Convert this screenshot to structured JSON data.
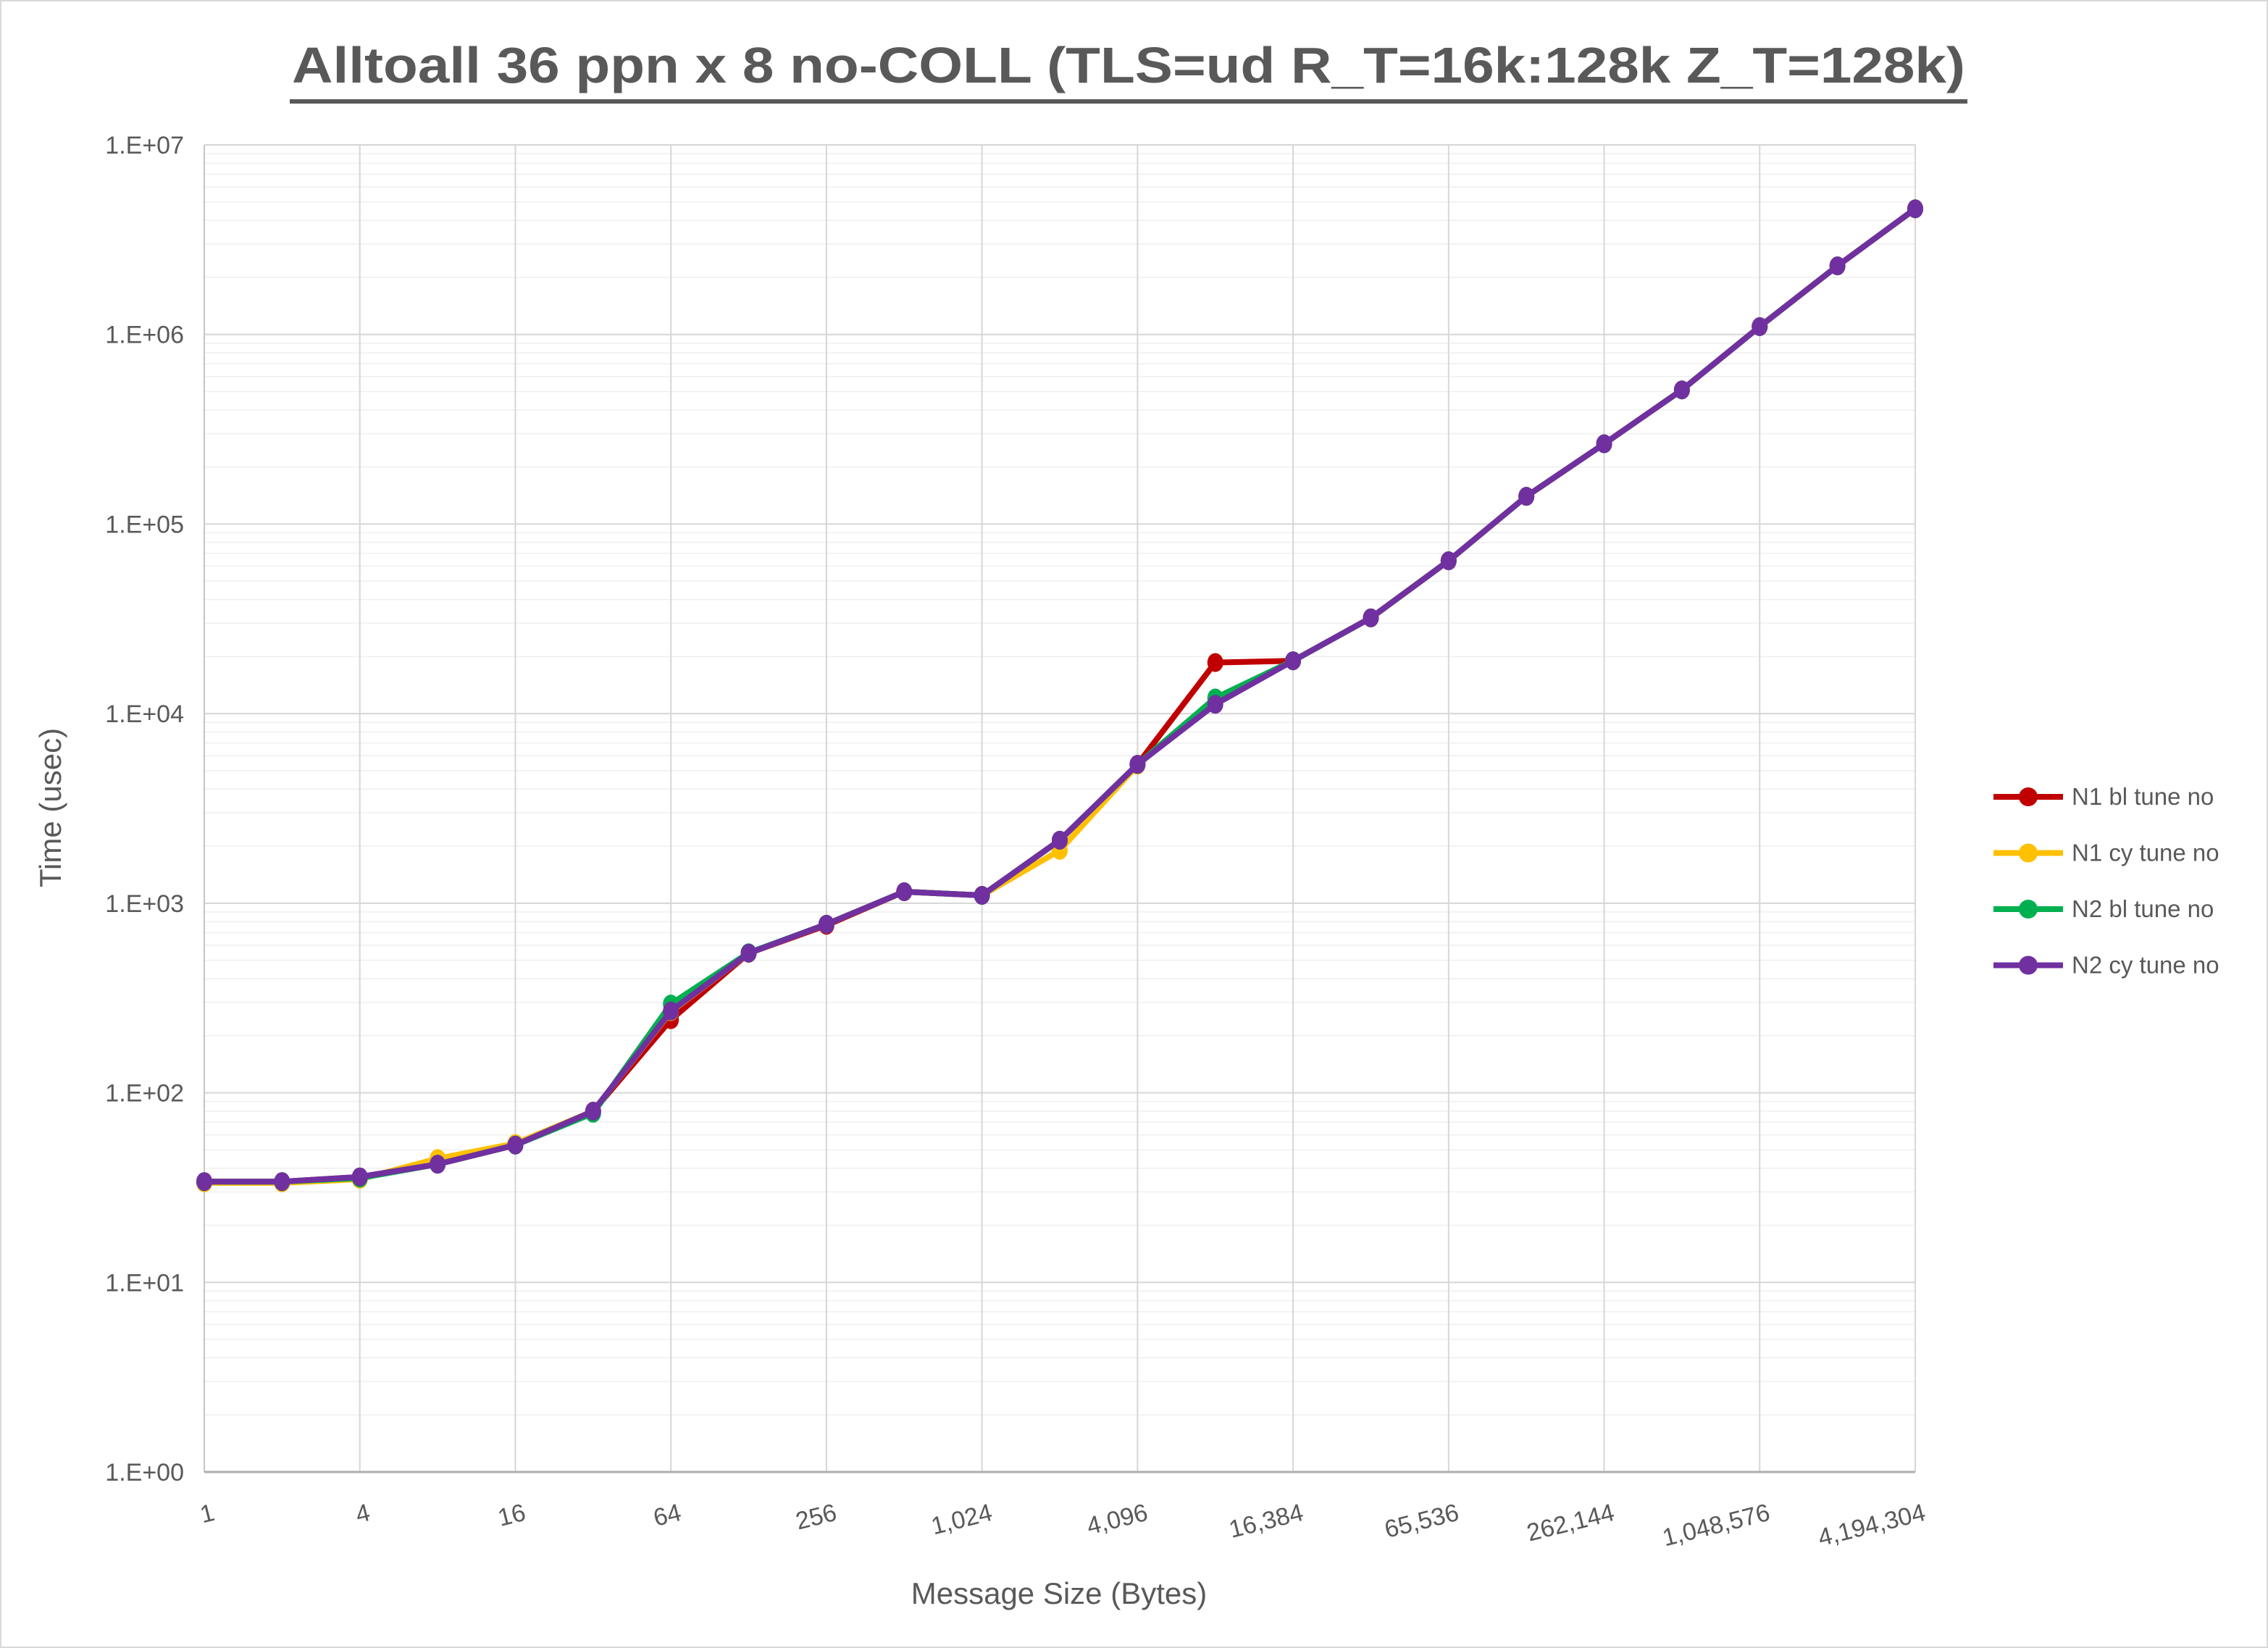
{
  "chart_data": {
    "type": "line",
    "title": "Alltoall 36 ppn x 8 no-COLL (TLS=ud R_T=16k:128k Z_T=128k)",
    "xlabel": "Message Size (Bytes)",
    "ylabel": "Time (usec)",
    "x_scale": "log2",
    "y_scale": "log10",
    "ylim": [
      1,
      10000000
    ],
    "grid": true,
    "legend_position": "right-outside",
    "y_tick_labels": [
      "1.E+00",
      "1.E+01",
      "1.E+02",
      "1.E+03",
      "1.E+04",
      "1.E+05",
      "1.E+06",
      "1.E+07"
    ],
    "x": [
      1,
      2,
      4,
      8,
      16,
      32,
      64,
      128,
      256,
      512,
      1024,
      2048,
      4096,
      8192,
      16384,
      32768,
      65536,
      131072,
      262144,
      524288,
      1048576,
      2097152,
      4194304
    ],
    "x_tick_labels": [
      "1",
      "4",
      "16",
      "64",
      "256",
      "1,024",
      "4,096",
      "16,384",
      "65,536",
      "262,144",
      "1,048,576",
      "4,194,304"
    ],
    "series": [
      {
        "name": "N1 bl tune no",
        "color": "#C00000",
        "values": [
          34,
          34,
          36,
          42,
          53,
          80,
          243,
          545,
          765,
          1150,
          1100,
          2150,
          5400,
          18600,
          19000,
          32000,
          64000,
          140000,
          265000,
          510000,
          1100000,
          2300000,
          4600000
        ]
      },
      {
        "name": "N1 cy tune no",
        "color": "#FFC000",
        "values": [
          33.5,
          33.5,
          35,
          45,
          54,
          80,
          268,
          545,
          775,
          1150,
          1100,
          1900,
          5350,
          11800,
          19000,
          32000,
          64000,
          140000,
          265000,
          510000,
          1100000,
          2300000,
          4600000
        ]
      },
      {
        "name": "N2 bl tune no",
        "color": "#00B050",
        "values": [
          34,
          34,
          35.5,
          42,
          53,
          78,
          294,
          548,
          775,
          1150,
          1100,
          2150,
          5400,
          12100,
          19000,
          32000,
          64000,
          140000,
          265000,
          510000,
          1100000,
          2300000,
          4600000
        ]
      },
      {
        "name": "N2 cy tune no",
        "color": "#7030A0",
        "values": [
          34,
          34,
          36,
          42,
          53,
          80,
          270,
          545,
          775,
          1150,
          1100,
          2150,
          5400,
          11200,
          19000,
          32000,
          64000,
          140000,
          265000,
          510000,
          1100000,
          2300000,
          4600000
        ]
      }
    ],
    "colors": {
      "text": "#595959",
      "major_grid": "#d6d6d6",
      "minor_grid": "#efefef",
      "axis_line": "#adadad"
    }
  }
}
